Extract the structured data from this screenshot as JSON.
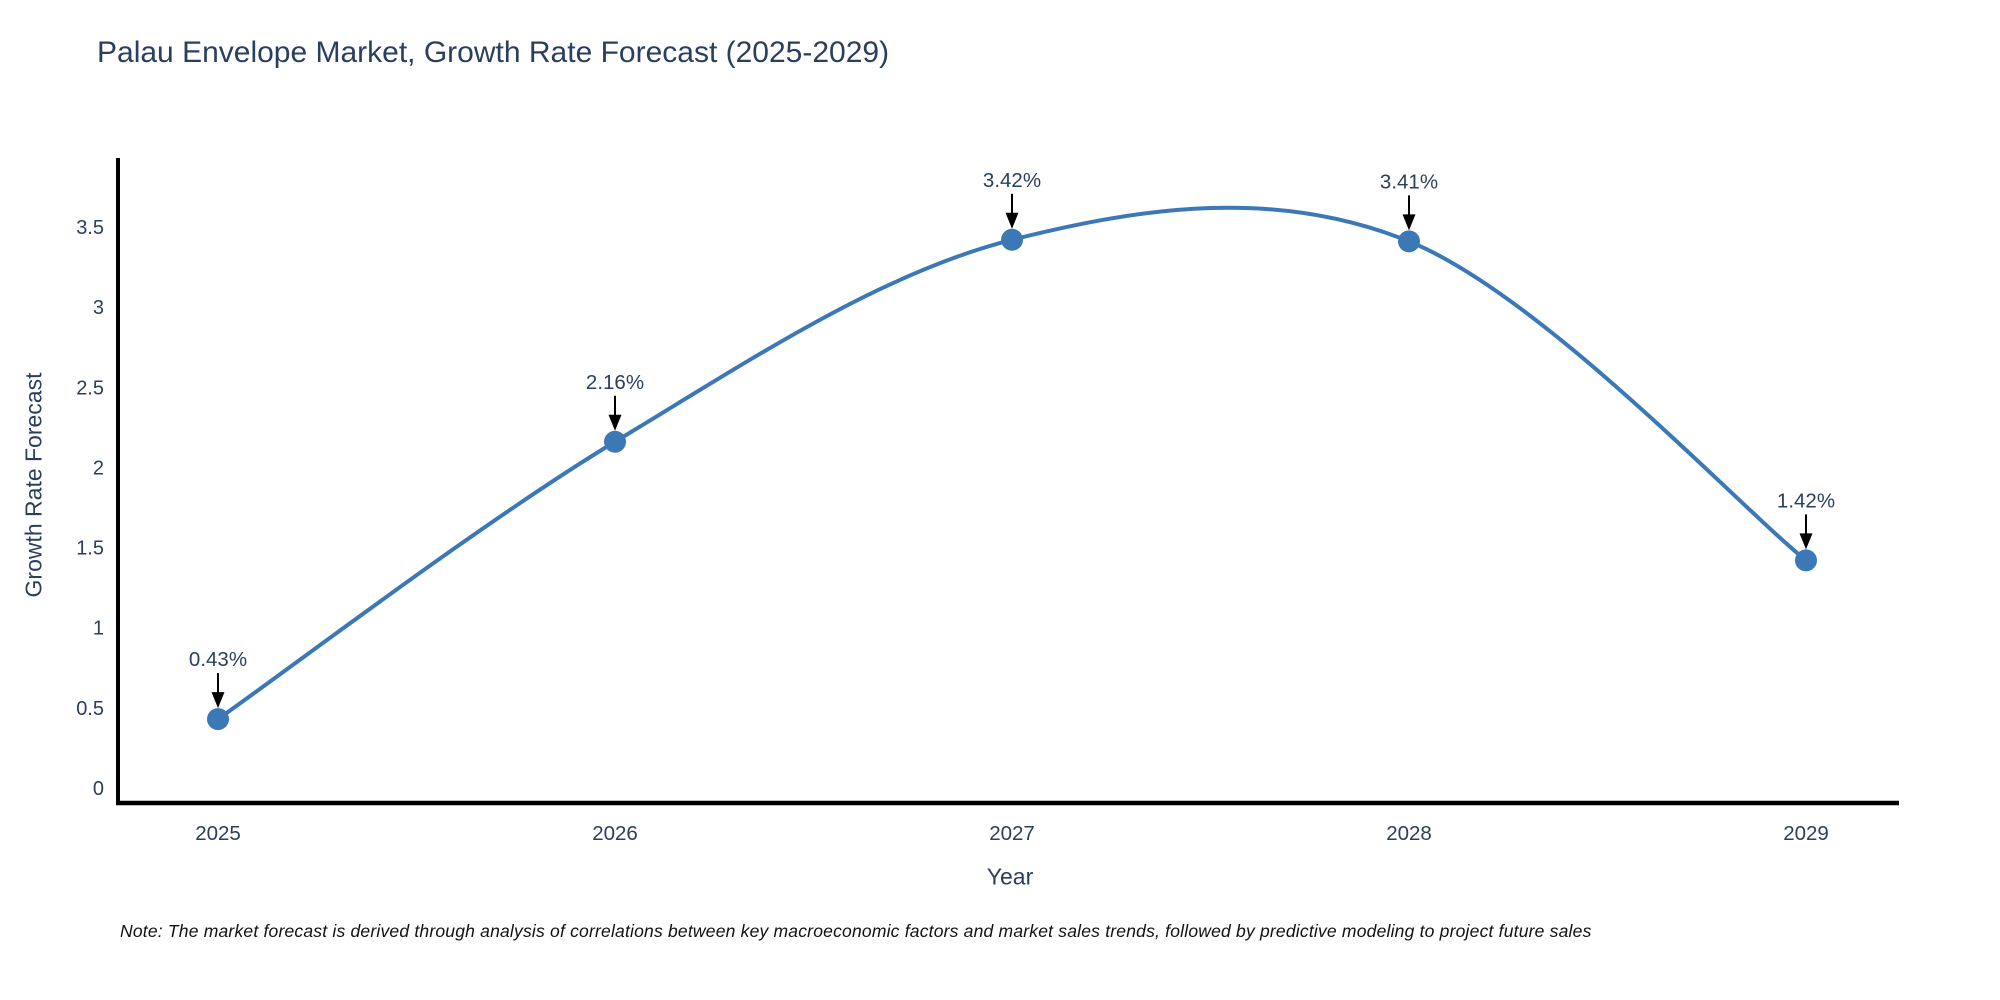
{
  "page": {
    "background": "#ffffff"
  },
  "chart_data": {
    "type": "line",
    "title": "Palau Envelope Market, Growth Rate Forecast (2025-2029)",
    "xlabel": "Year",
    "ylabel": "Growth Rate Forecast",
    "x": [
      2025,
      2026,
      2027,
      2028,
      2029
    ],
    "series": [
      {
        "name": "Growth Rate Forecast",
        "values": [
          0.43,
          2.16,
          3.42,
          3.41,
          1.42
        ]
      }
    ],
    "point_labels": [
      "0.43%",
      "2.16%",
      "3.42%",
      "3.41%",
      "1.42%"
    ],
    "yticks": [
      "0",
      "0.5",
      "1",
      "1.5",
      "2",
      "2.5",
      "3",
      "3.5"
    ],
    "ytick_values": [
      0,
      0.5,
      1,
      1.5,
      2,
      2.5,
      3,
      3.5
    ],
    "ylim": [
      0,
      3.92
    ],
    "line_shape": "spline",
    "grid": false,
    "legend_position": "none",
    "colors": {
      "line": "#3c78b6",
      "marker": "#3c78b6",
      "axis_line": "#000000",
      "text": "#2a3f5f",
      "annotation_text": "#2a3f5f",
      "arrow": "#000000",
      "note_text": "#111111"
    }
  },
  "note": {
    "text": "Note: The market forecast is derived through analysis of correlations between key macroeconomic factors and market sales trends, followed by predictive modeling to project future sales"
  }
}
